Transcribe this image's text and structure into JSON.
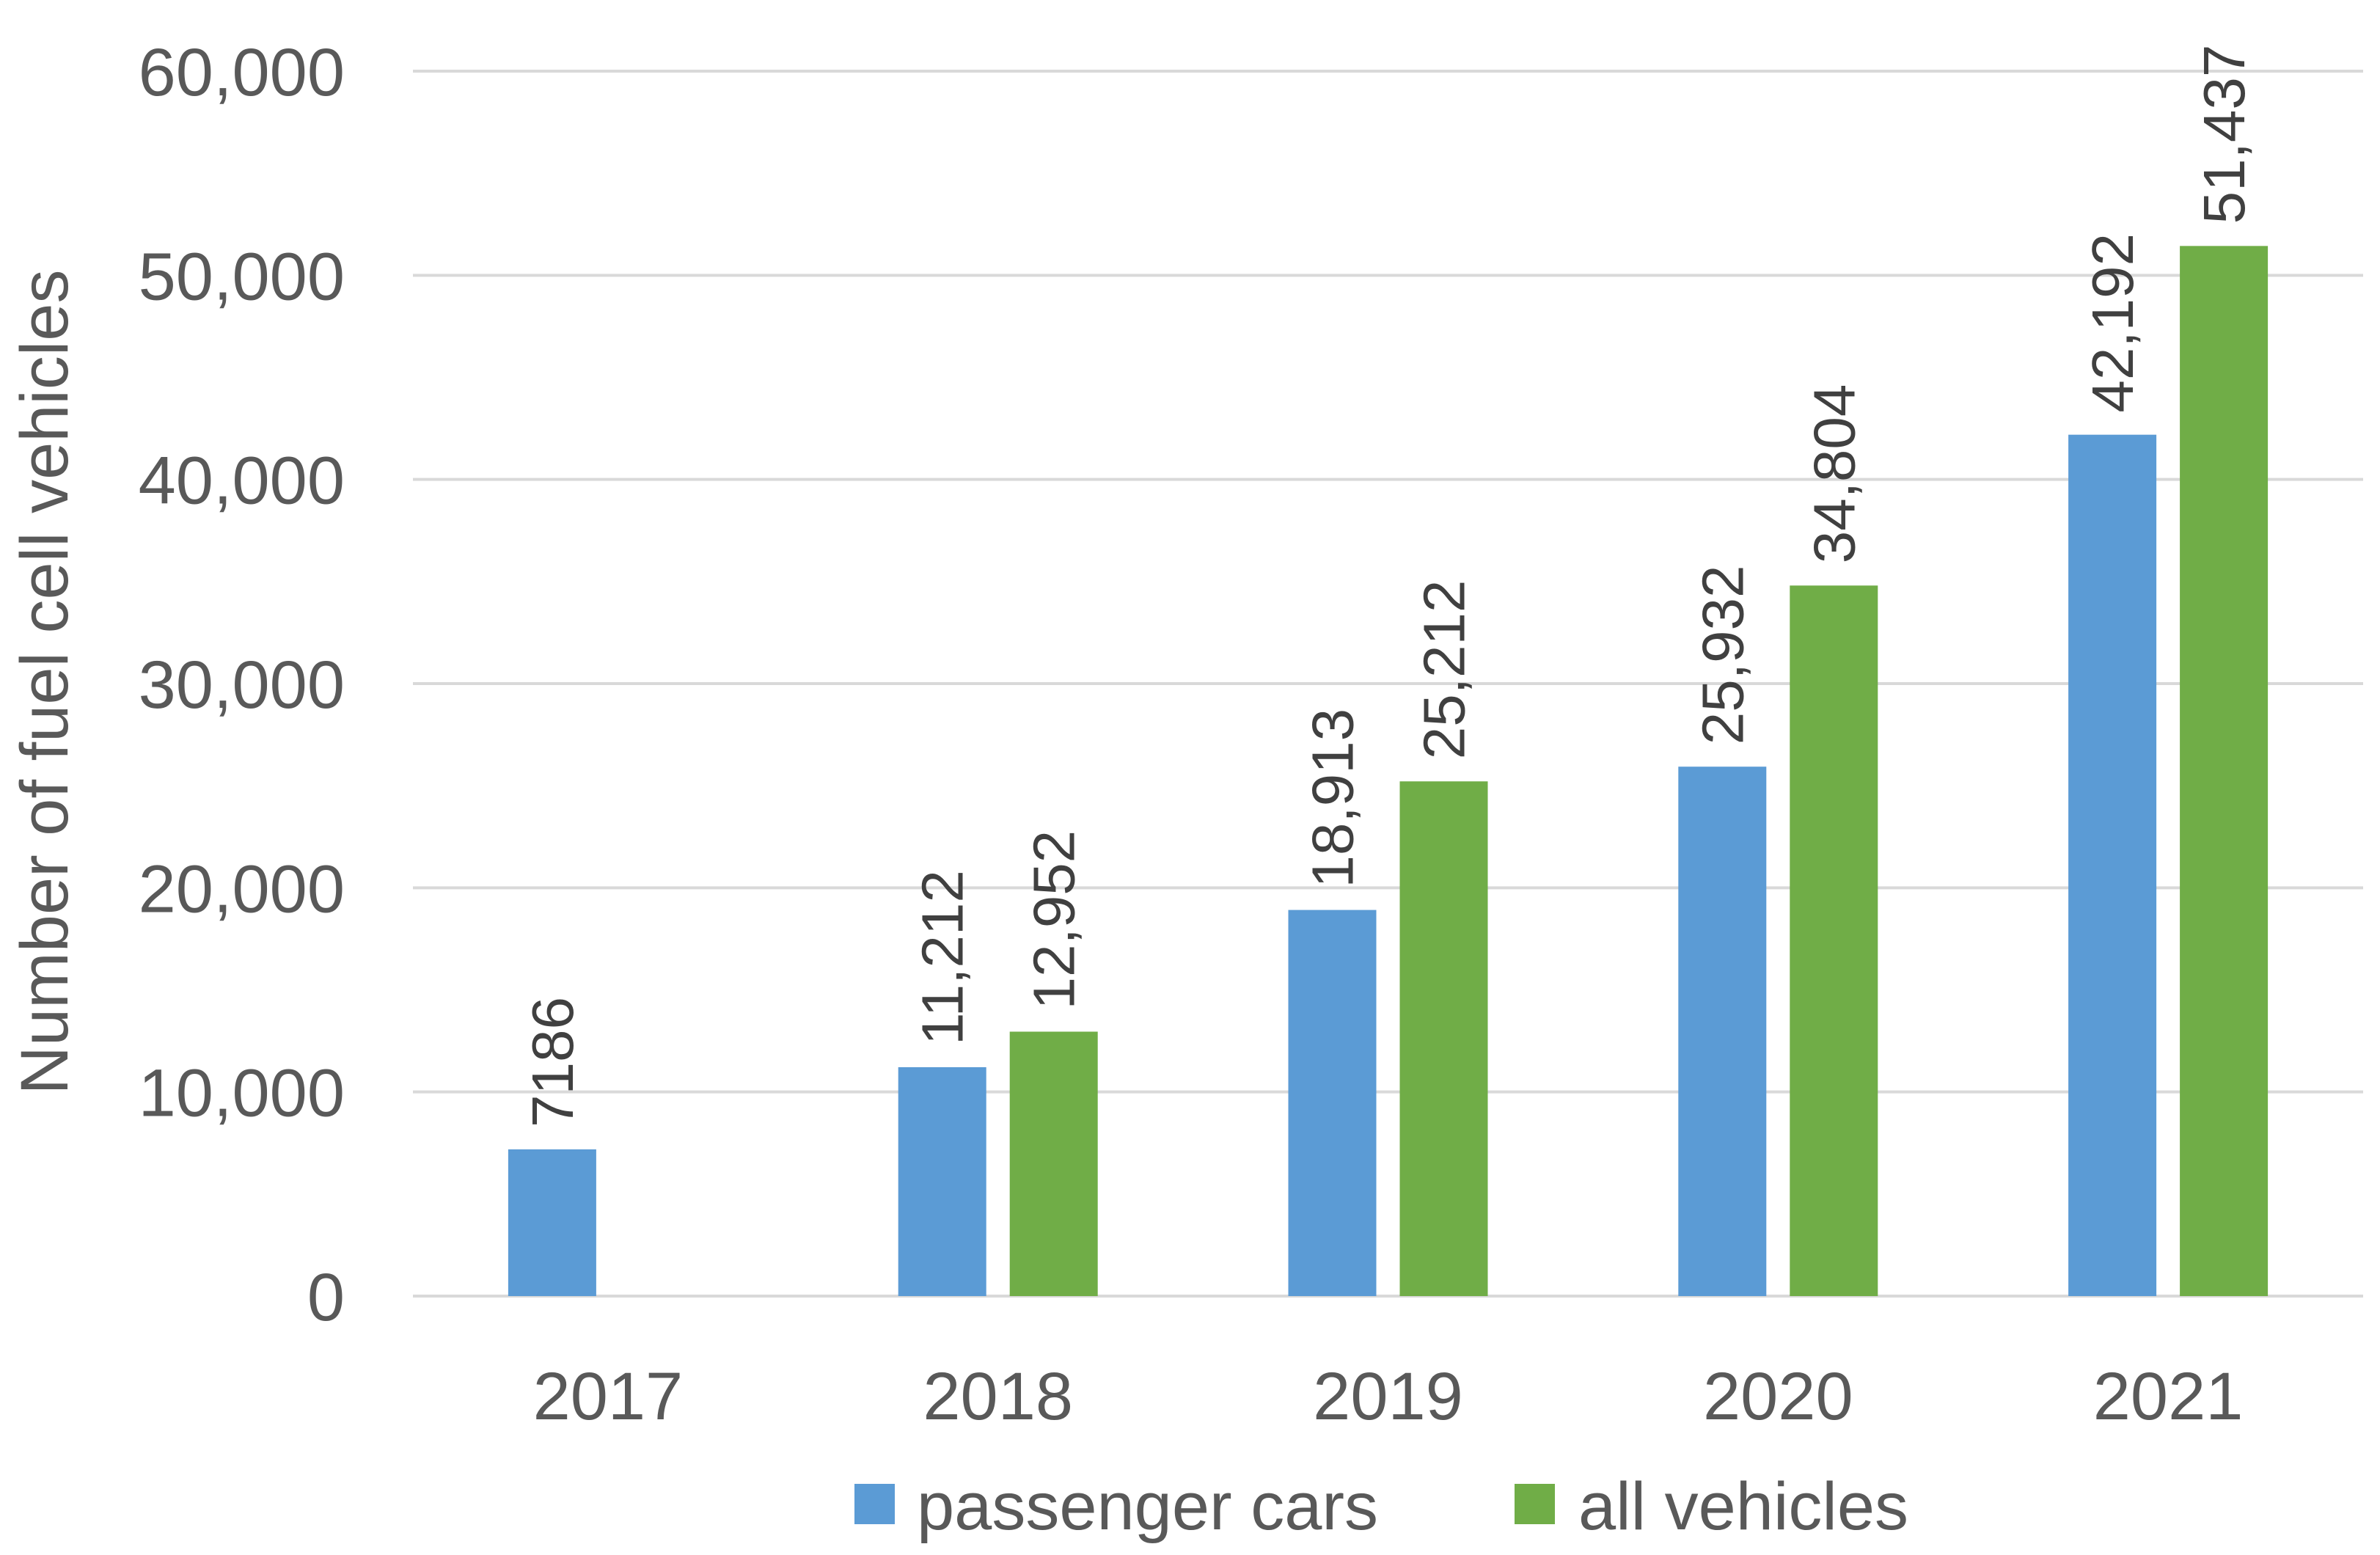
{
  "chart_data": {
    "type": "bar",
    "title": "",
    "xlabel": "",
    "ylabel": "Number of fuel cell vehicles",
    "ylim": [
      0,
      60000
    ],
    "yticks": [
      0,
      10000,
      20000,
      30000,
      40000,
      50000,
      60000
    ],
    "ytick_labels": [
      "0",
      "10,000",
      "20,000",
      "30,000",
      "40,000",
      "50,000",
      "60,000"
    ],
    "categories": [
      "2017",
      "2018",
      "2019",
      "2020",
      "2021"
    ],
    "series": [
      {
        "name": "passenger cars",
        "color": "#5b9bd5",
        "values": [
          7186,
          11212,
          18913,
          25932,
          42192
        ],
        "labels": [
          "7186",
          "11,212",
          "18,913",
          "25,932",
          "42,192"
        ]
      },
      {
        "name": "all vehicles",
        "color": "#70ad47",
        "values": [
          null,
          12952,
          25212,
          34804,
          51437
        ],
        "labels": [
          null,
          "12,952",
          "25,212",
          "34,804",
          "51,437"
        ]
      }
    ],
    "grid": true,
    "legend_position": "bottom"
  }
}
